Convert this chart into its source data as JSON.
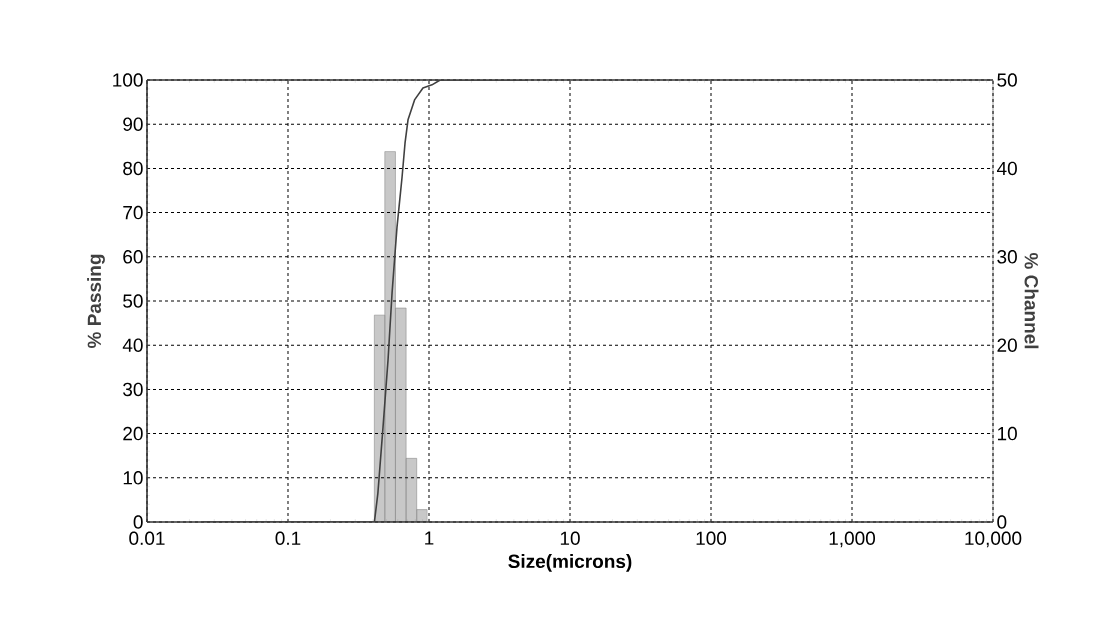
{
  "chart_data": {
    "type": "line",
    "xlabel": "Size(microns)",
    "ylabel": "% Passing",
    "y2label": "% Channel",
    "log": "x",
    "grid": true,
    "marker": "none",
    "xlim": [
      0.01,
      10000
    ],
    "xticks": [
      0.01,
      0.1,
      1,
      10,
      100,
      {
        "value": 1000,
        "label": "1,000"
      },
      {
        "value": 10000,
        "label": "10,000"
      }
    ],
    "ylim": [
      0,
      100
    ],
    "yticks": [
      0,
      10,
      20,
      30,
      40,
      50,
      60,
      70,
      80,
      90,
      100
    ],
    "y2lim": [
      0,
      50
    ],
    "y2ticks": [
      0,
      10,
      20,
      30,
      40,
      50
    ],
    "series": [
      {
        "type": "histogram",
        "axis": "y2",
        "color": "#c8c8c8",
        "bins": [
          0.409,
          0.486,
          0.578,
          0.688,
          0.818,
          0.972
        ],
        "values": [
          23.4,
          41.9,
          24.2,
          7.2,
          1.4
        ]
      },
      {
        "color": "#404040",
        "x": [
          0.025,
          0.41,
          0.434,
          0.472,
          0.512,
          0.547,
          0.593,
          0.644,
          0.676,
          0.71,
          0.79,
          0.906,
          1.05,
          1.2,
          5
        ],
        "values": [
          0,
          0,
          6.5,
          21.5,
          36.6,
          51.8,
          66.7,
          78,
          85.7,
          91,
          95.5,
          98.2,
          98.9,
          100,
          100
        ]
      }
    ]
  }
}
